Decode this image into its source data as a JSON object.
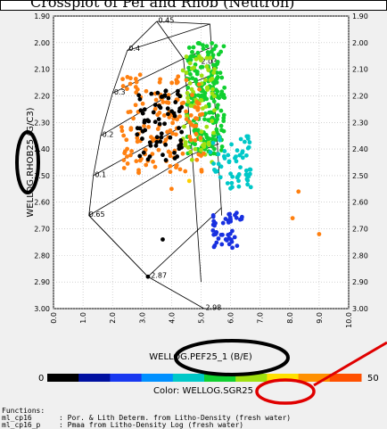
{
  "header": {
    "text": "Crossplot of Pef and Rhob (Neutron)"
  },
  "chart_data": {
    "type": "scatter",
    "x": {
      "label": "WELLOG.PEF25_1 (B/E)",
      "range": [
        0,
        10
      ],
      "ticks": [
        "0.0",
        "1.0",
        "2.0",
        "3.0",
        "4.0",
        "5.0",
        "6.0",
        "7.0",
        "8.0",
        "9.0",
        "10.0"
      ]
    },
    "y": {
      "label": "WELLOG.RHOB25   (G/C3)",
      "range": [
        1.9,
        3.0
      ],
      "inverted": true,
      "ticks": [
        "1.90",
        "2.00",
        "2.10",
        "2.20",
        "2.30",
        "2.40",
        "2.50",
        "2.60",
        "2.70",
        "2.80",
        "2.90",
        "3.00"
      ]
    },
    "color_scale": {
      "label": "Color: WELLOG.SGR25",
      "min_label": "0",
      "max_label": "50",
      "min": 0,
      "max": 50
    },
    "overlay_labels": [
      {
        "text": "0.45",
        "x": 3.55,
        "y": 1.925
      },
      {
        "text": "0.4",
        "x": 2.55,
        "y": 2.03
      },
      {
        "text": "0.3",
        "x": 2.05,
        "y": 2.195
      },
      {
        "text": "0.2",
        "x": 1.65,
        "y": 2.355
      },
      {
        "text": "0.1",
        "x": 1.4,
        "y": 2.505
      },
      {
        "text": "0.65",
        "x": 1.2,
        "y": 2.655
      },
      {
        "text": "2.87",
        "x": 3.3,
        "y": 2.885
      },
      {
        "text": "2.98",
        "x": 5.15,
        "y": 3.005
      },
      {
        "text": "2.03",
        "x": 5.0,
        "y": 2.08
      }
    ],
    "clusters": [
      {
        "name": "green-main",
        "color": "#10d030",
        "x": [
          4.5,
          5.8
        ],
        "y": [
          2.0,
          2.42
        ],
        "n": 220
      },
      {
        "name": "yellow-green",
        "color": "#a0e010",
        "x": [
          4.3,
          5.5
        ],
        "y": [
          2.05,
          2.45
        ],
        "n": 70
      },
      {
        "name": "cyan",
        "color": "#00c8c8",
        "x": [
          5.3,
          6.7
        ],
        "y": [
          2.35,
          2.55
        ],
        "n": 60
      },
      {
        "name": "blue",
        "color": "#1830e0",
        "x": [
          5.4,
          6.5
        ],
        "y": [
          2.64,
          2.78
        ],
        "n": 45
      },
      {
        "name": "orange",
        "color": "#ff8010",
        "x": [
          2.3,
          5.1
        ],
        "y": [
          2.12,
          2.5
        ],
        "n": 150
      },
      {
        "name": "black",
        "color": "#000000",
        "x": [
          2.8,
          4.4
        ],
        "y": [
          2.18,
          2.45
        ],
        "n": 70
      }
    ],
    "outliers": [
      {
        "x": 9.0,
        "y": 2.72,
        "color": "#ff8010"
      },
      {
        "x": 8.3,
        "y": 2.56,
        "color": "#ff8010"
      },
      {
        "x": 8.1,
        "y": 2.66,
        "color": "#ff8010"
      },
      {
        "x": 3.7,
        "y": 2.74,
        "color": "#000000"
      },
      {
        "x": 3.2,
        "y": 2.88,
        "color": "#000000"
      },
      {
        "x": 4.6,
        "y": 2.52,
        "color": "#ffd000"
      },
      {
        "x": 4.0,
        "y": 2.55,
        "color": "#ff8010"
      },
      {
        "x": 3.9,
        "y": 2.41,
        "color": "#ff8010"
      }
    ]
  },
  "legend": {
    "title": "Functions:",
    "rows": [
      {
        "name": "ml_cp16",
        "desc": ": Por. & Lith Determ. from Litho-Density (fresh water)"
      },
      {
        "name": "ml_cp16_p",
        "desc": ": Pmaa from Litho-Density Log (fresh water)"
      }
    ]
  }
}
